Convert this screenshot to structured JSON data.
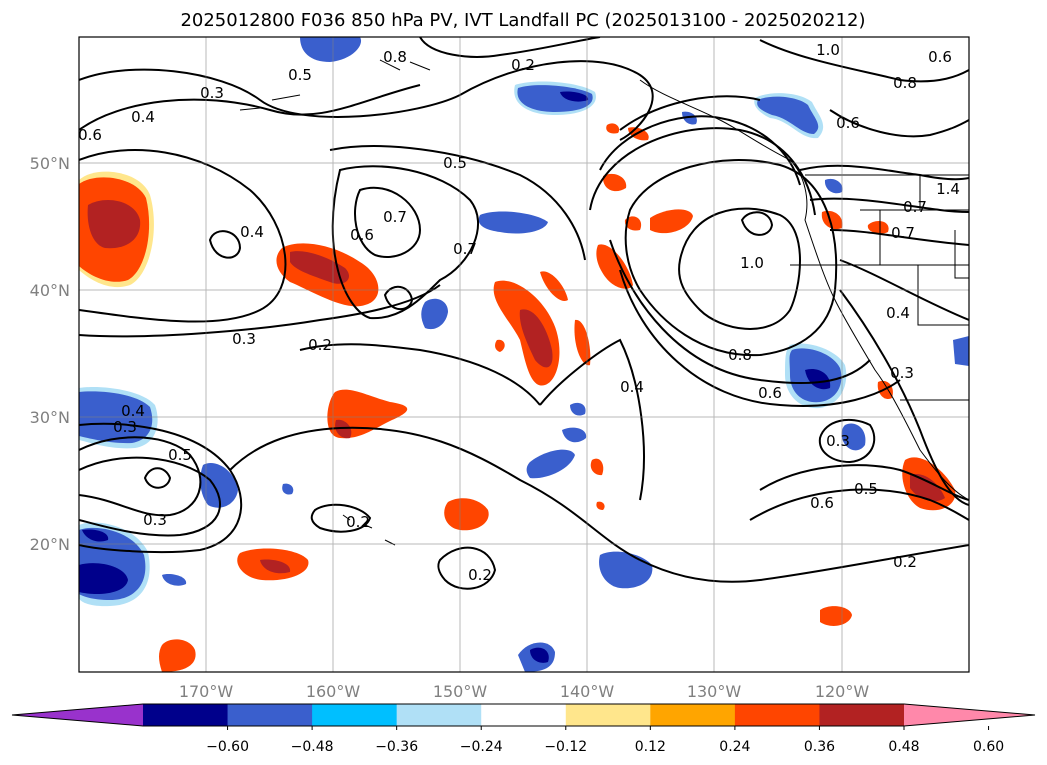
{
  "title": "2025012800 F036 850 hPa PV, IVT Landfall PC (2025013100 - 2025020212)",
  "map": {
    "lon_labels": [
      "170°W",
      "160°W",
      "150°W",
      "140°W",
      "130°W",
      "120°W"
    ],
    "lat_labels": [
      "50°N",
      "40°N",
      "30°N",
      "20°N"
    ],
    "extent": {
      "lon_min": -180,
      "lon_max": -110,
      "lat_min": 10,
      "lat_max": 60
    },
    "gridlines": true,
    "contour_field": "850 hPa PV",
    "contour_labels": [
      "0.5",
      "0.2",
      "0.6",
      "0.3",
      "0.4",
      "0.6",
      "0.5",
      "0.7",
      "0.6",
      "0.7",
      "0.4",
      "0.3",
      "0.2",
      "0.4",
      "0.3",
      "0.5",
      "0.3",
      "0.2",
      "0.2",
      "0.4",
      "1.0",
      "0.8",
      "0.6",
      "0.3",
      "0.5",
      "0.6",
      "0.2",
      "1.0",
      "0.8",
      "0.6",
      "0.7",
      "1.4",
      "0.7",
      "0.4",
      "0.3",
      "0.8"
    ]
  },
  "colorbar": {
    "extend": "both",
    "ticks": [
      "−0.60",
      "−0.48",
      "−0.36",
      "−0.24",
      "−0.12",
      "0.12",
      "0.24",
      "0.36",
      "0.48",
      "0.60"
    ],
    "colors": [
      "#9932cc",
      "#00008b",
      "#3a5fcd",
      "#00bfff",
      "#b0e0f6",
      "#ffffff",
      "#ffe68c",
      "#ffa500",
      "#ff4500",
      "#b22222",
      "#ff88aa"
    ]
  }
}
